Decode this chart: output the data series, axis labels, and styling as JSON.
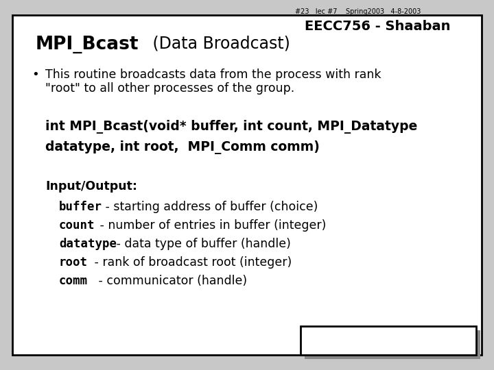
{
  "bg_color": "#c8c8c8",
  "slide_bg": "#ffffff",
  "border_color": "#000000",
  "title_bold": "MPI_Bcast",
  "title_normal": "   (Data Broadcast)",
  "bullet_char": "•",
  "bullet_line1": "This routine broadcasts data from the process with rank",
  "bullet_line2": "\"root\" to all other processes of the group.",
  "code_line1": "int MPI_Bcast(void* buffer, int count, MPI_Datatype",
  "code_line2": "datatype, int root,  MPI_Comm comm)",
  "io_header": "Input/Output:",
  "io_items": [
    [
      "buffer",
      " - starting address of buffer (choice)"
    ],
    [
      "count",
      " - number of entries in buffer (integer)"
    ],
    [
      "datatype",
      " - data type of buffer (handle)"
    ],
    [
      "root",
      " - rank of broadcast root (integer)"
    ],
    [
      "comm",
      " - communicator (handle)"
    ]
  ],
  "footer_bold": "EECC756 - Shaaban",
  "footer_small": "#23   lec #7    Spring2003   4-8-2003"
}
